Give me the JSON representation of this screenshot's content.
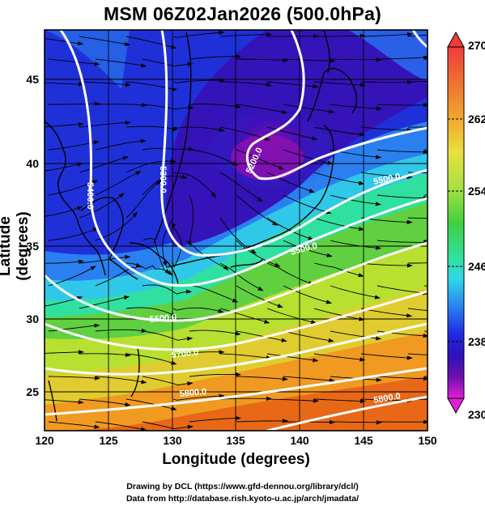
{
  "title": "MSM 06Z02Jan2026 (500.0hPa)",
  "x_axis": {
    "label": "Longitude (degrees)",
    "ticks": [
      "120",
      "125",
      "130",
      "135",
      "140",
      "145",
      "150"
    ]
  },
  "y_axis": {
    "label": "Latitude  (degrees)",
    "ticks": [
      "25",
      "30",
      "35",
      "40",
      "45"
    ]
  },
  "colorbar": {
    "ticks": [
      "270",
      "262",
      "254",
      "246",
      "238",
      "230"
    ],
    "colors": [
      "#f03c3c",
      "#f07a30",
      "#f0b030",
      "#e8e040",
      "#a8e040",
      "#40d040",
      "#30e0a0",
      "#30d8e8",
      "#2a80f0",
      "#2028e0",
      "#3010b8",
      "#7010b0",
      "#b000c0",
      "#e020d8"
    ]
  },
  "contour_labels": [
    "5400.0",
    "5300.0",
    "5200.0",
    "5500.0",
    "5500.0",
    "5600.0",
    "5700.0",
    "5800.0",
    "5800.0"
  ],
  "credits": {
    "line1": "Drawing by DCL (https://www.gfd-dennou.org/library/dcl/)",
    "line2": "Data from http://database.rish.kyoto-u.ac.jp/arch/jmadata/"
  }
}
